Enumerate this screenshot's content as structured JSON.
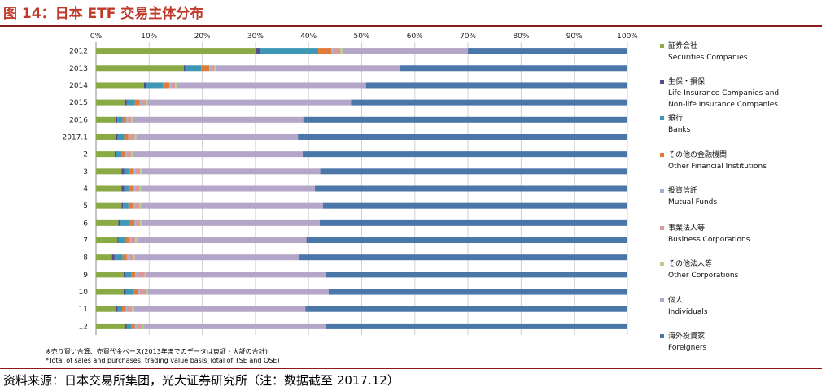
{
  "title": "图 14：日本 ETF 交易主体分布",
  "notes": {
    "line1": "※売り買い合算、売買代金ベース(2013年までのデータは東証・大証の合計)",
    "line2": "*Total of sales and purchases, trading value basis(Total of TSE and OSE)"
  },
  "source": "资料来源：日本交易所集团，光大证券研究所（注：数据截至 2017.12）",
  "colors": {
    "securities": "#8aaa45",
    "insurance": "#5b4a8a",
    "banks": "#3d97b5",
    "other_financial": "#e07b39",
    "mutual_funds": "#9fb3d9",
    "business_corp": "#d89a9a",
    "other_corp": "#b5d18e",
    "individuals": "#b3a6c9",
    "foreigners": "#4a77a8",
    "grid": "#d0d0d0",
    "axis": "#888888"
  },
  "legend": [
    {
      "key": "securities",
      "jp": "証券会社",
      "en": [
        "Securities Companies"
      ]
    },
    {
      "key": "insurance",
      "jp": "生保・損保",
      "en": [
        "Life Insurance Companies and",
        "Non-life Insurance Companies"
      ]
    },
    {
      "key": "banks",
      "jp": "銀行",
      "en": [
        "Banks"
      ]
    },
    {
      "key": "other_financial",
      "jp": "その他の金融機関",
      "en": [
        "Other Financial Institutions"
      ]
    },
    {
      "key": "mutual_funds",
      "jp": "投資信託",
      "en": [
        "Mutual Funds"
      ]
    },
    {
      "key": "business_corp",
      "jp": "事業法人等",
      "en": [
        "Business Corporations"
      ]
    },
    {
      "key": "other_corp",
      "jp": "その他法人等",
      "en": [
        "Other Corporations"
      ]
    },
    {
      "key": "individuals",
      "jp": "個人",
      "en": [
        "Individuals"
      ]
    },
    {
      "key": "foreigners",
      "jp": "海外投資家",
      "en": [
        "Foreigners"
      ]
    }
  ],
  "chart_data": {
    "type": "bar",
    "orientation": "horizontal",
    "stacked": true,
    "xlim": [
      0,
      100
    ],
    "x_ticks": [
      "0%",
      "10%",
      "20%",
      "30%",
      "40%",
      "50%",
      "60%",
      "70%",
      "80%",
      "90%",
      "100%"
    ],
    "grid": true,
    "legend_position": "right",
    "categories": [
      "2012",
      "2013",
      "2014",
      "2015",
      "2016",
      "2017.1",
      "2",
      "3",
      "4",
      "5",
      "6",
      "7",
      "8",
      "9",
      "10",
      "11",
      "12"
    ],
    "series": [
      {
        "key": "securities",
        "name": "Securities Companies",
        "values": [
          30.0,
          16.5,
          9.0,
          5.5,
          3.7,
          3.8,
          3.5,
          4.8,
          4.8,
          4.8,
          4.2,
          4.0,
          3.0,
          5.2,
          5.2,
          3.8,
          5.5
        ]
      },
      {
        "key": "insurance",
        "name": "Life Insurance Companies and Non-life Insurance Companies",
        "values": [
          0.8,
          0.3,
          0.4,
          0.3,
          0.3,
          0.3,
          0.3,
          0.5,
          0.5,
          0.3,
          0.4,
          0.2,
          0.5,
          0.3,
          0.4,
          0.3,
          0.3
        ]
      },
      {
        "key": "banks",
        "name": "Banks",
        "values": [
          11.0,
          3.0,
          3.2,
          1.5,
          1.0,
          1.2,
          1.0,
          1.0,
          1.0,
          1.0,
          1.8,
          1.2,
          1.5,
          1.2,
          1.5,
          0.8,
          0.8
        ]
      },
      {
        "key": "other_financial",
        "name": "Other Financial Institutions",
        "values": [
          2.5,
          1.5,
          1.2,
          0.9,
          0.7,
          0.8,
          0.7,
          0.8,
          0.8,
          0.9,
          0.8,
          0.8,
          0.8,
          0.7,
          0.8,
          0.7,
          0.7
        ]
      },
      {
        "key": "mutual_funds",
        "name": "Mutual Funds",
        "values": [
          0.5,
          0.3,
          0.3,
          0.3,
          0.2,
          0.3,
          0.3,
          0.3,
          0.3,
          0.3,
          0.3,
          0.3,
          0.3,
          0.3,
          0.3,
          0.3,
          0.3
        ]
      },
      {
        "key": "business_corp",
        "name": "Business Corporations",
        "values": [
          1.2,
          0.7,
          0.8,
          0.9,
          0.8,
          0.9,
          0.9,
          0.9,
          0.8,
          0.9,
          0.8,
          0.9,
          0.9,
          1.5,
          1.2,
          0.9,
          1.0
        ]
      },
      {
        "key": "other_corp",
        "name": "Other Corporations",
        "values": [
          0.5,
          0.3,
          0.3,
          0.3,
          0.3,
          0.3,
          0.3,
          0.3,
          0.3,
          0.3,
          0.3,
          0.3,
          0.3,
          0.3,
          0.3,
          0.3,
          0.3
        ]
      },
      {
        "key": "individuals",
        "name": "Individuals",
        "values": [
          23.5,
          34.6,
          35.6,
          38.3,
          32.0,
          30.4,
          31.9,
          33.6,
          32.7,
          34.2,
          33.5,
          31.9,
          30.9,
          33.9,
          34.2,
          32.3,
          34.3
        ]
      },
      {
        "key": "foreigners",
        "name": "Foreigners",
        "values": [
          30.0,
          42.8,
          49.2,
          52.0,
          61.0,
          62.0,
          61.1,
          57.8,
          58.8,
          57.3,
          57.9,
          60.4,
          61.8,
          56.9,
          56.4,
          60.6,
          56.8
        ]
      }
    ]
  }
}
